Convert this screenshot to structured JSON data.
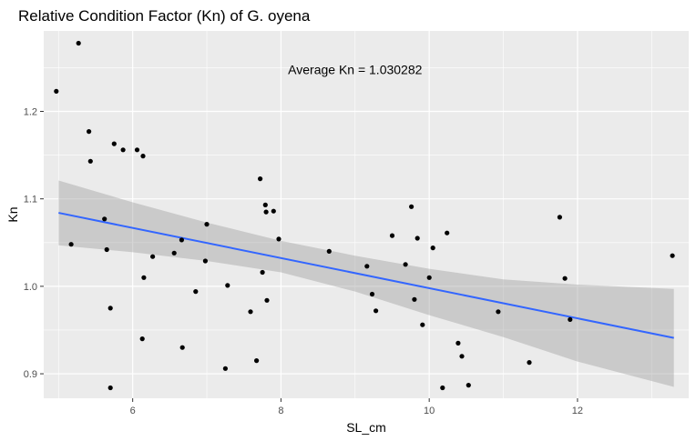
{
  "chart_data": {
    "type": "scatter",
    "title": "Relative Condition Factor (Kn) of G. oyena",
    "xlabel": "SL_cm",
    "ylabel": "Kn",
    "xlim": [
      4.8,
      13.5
    ],
    "ylim": [
      0.872,
      1.292
    ],
    "x_ticks": [
      6,
      8,
      10,
      12
    ],
    "y_ticks": [
      0.9,
      1.0,
      1.1,
      1.2
    ],
    "x_tick_labels": [
      "6",
      "8",
      "10",
      "12"
    ],
    "y_tick_labels": [
      "0.9",
      "1.0",
      "1.1",
      "1.2"
    ],
    "grid": true,
    "annotation": {
      "text": "Average Kn = 1.030282",
      "x": 9.0,
      "y": 1.248
    },
    "colors": {
      "panel": "#ebebeb",
      "grid": "#ffffff",
      "point": "#000000",
      "line": "#3366ff",
      "ribbon": "#999999"
    },
    "fit": {
      "x": [
        5.0,
        13.3
      ],
      "y": [
        1.084,
        0.941
      ]
    },
    "ribbon": {
      "x": [
        5.0,
        6.0,
        7.0,
        8.0,
        9.0,
        10.0,
        11.0,
        12.0,
        13.3
      ],
      "upper": [
        1.121,
        1.096,
        1.073,
        1.052,
        1.035,
        1.02,
        1.008,
        1.002,
        0.997
      ],
      "lower": [
        1.047,
        1.039,
        1.029,
        1.016,
        0.994,
        0.967,
        0.942,
        0.914,
        0.885
      ]
    },
    "points": [
      {
        "x": 4.97,
        "y": 1.223
      },
      {
        "x": 5.27,
        "y": 1.278
      },
      {
        "x": 5.41,
        "y": 1.177
      },
      {
        "x": 5.43,
        "y": 1.143
      },
      {
        "x": 5.17,
        "y": 1.048
      },
      {
        "x": 5.62,
        "y": 1.077
      },
      {
        "x": 5.65,
        "y": 1.042
      },
      {
        "x": 5.7,
        "y": 0.975
      },
      {
        "x": 5.7,
        "y": 0.884
      },
      {
        "x": 5.75,
        "y": 1.163
      },
      {
        "x": 5.87,
        "y": 1.156
      },
      {
        "x": 6.06,
        "y": 1.156
      },
      {
        "x": 6.14,
        "y": 1.149
      },
      {
        "x": 6.15,
        "y": 1.01
      },
      {
        "x": 6.13,
        "y": 0.94
      },
      {
        "x": 6.27,
        "y": 1.034
      },
      {
        "x": 6.56,
        "y": 1.038
      },
      {
        "x": 6.66,
        "y": 1.053
      },
      {
        "x": 6.67,
        "y": 0.93
      },
      {
        "x": 6.85,
        "y": 0.994
      },
      {
        "x": 6.98,
        "y": 1.029
      },
      {
        "x": 7.0,
        "y": 1.071
      },
      {
        "x": 7.25,
        "y": 0.906
      },
      {
        "x": 7.28,
        "y": 1.001
      },
      {
        "x": 7.59,
        "y": 0.971
      },
      {
        "x": 7.67,
        "y": 0.915
      },
      {
        "x": 7.72,
        "y": 1.123
      },
      {
        "x": 7.75,
        "y": 1.016
      },
      {
        "x": 7.79,
        "y": 1.093
      },
      {
        "x": 7.8,
        "y": 1.085
      },
      {
        "x": 7.81,
        "y": 0.984
      },
      {
        "x": 7.9,
        "y": 1.086
      },
      {
        "x": 7.97,
        "y": 1.054
      },
      {
        "x": 8.65,
        "y": 1.04
      },
      {
        "x": 9.16,
        "y": 1.023
      },
      {
        "x": 9.23,
        "y": 0.991
      },
      {
        "x": 9.28,
        "y": 0.972
      },
      {
        "x": 9.5,
        "y": 1.058
      },
      {
        "x": 9.68,
        "y": 1.025
      },
      {
        "x": 9.76,
        "y": 1.091
      },
      {
        "x": 9.8,
        "y": 0.985
      },
      {
        "x": 9.84,
        "y": 1.055
      },
      {
        "x": 9.91,
        "y": 0.956
      },
      {
        "x": 10.0,
        "y": 1.01
      },
      {
        "x": 10.05,
        "y": 1.044
      },
      {
        "x": 10.18,
        "y": 0.884
      },
      {
        "x": 10.24,
        "y": 1.061
      },
      {
        "x": 10.39,
        "y": 0.935
      },
      {
        "x": 10.44,
        "y": 0.92
      },
      {
        "x": 10.53,
        "y": 0.887
      },
      {
        "x": 10.93,
        "y": 0.971
      },
      {
        "x": 11.35,
        "y": 0.913
      },
      {
        "x": 11.76,
        "y": 1.079
      },
      {
        "x": 11.83,
        "y": 1.009
      },
      {
        "x": 11.9,
        "y": 0.962
      },
      {
        "x": 13.28,
        "y": 1.035
      }
    ]
  }
}
